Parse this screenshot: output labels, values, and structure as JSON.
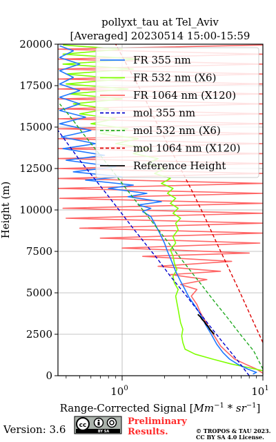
{
  "chart_data": {
    "type": "line",
    "title": "pollyxt_tau at Tel_Aviv",
    "subtitle": "[Averaged] 20230514 15:00-15:59",
    "xlabel": "Range-Corrected Signal [Mm⁻¹ * sr⁻¹]",
    "xlabel_parts": {
      "main": "Range-Corrected Signal [",
      "math": "Mm",
      "sup1": "−1",
      "mid": " * ",
      "math2": "sr",
      "sup2": "−1",
      "end": "]"
    },
    "ylabel": "Height (m)",
    "xscale": "log",
    "xlim": [
      0.35,
      10
    ],
    "ylim": [
      0,
      20000
    ],
    "grid": true,
    "legend_position": "upper-right",
    "x_major_ticks": [
      {
        "value": 1,
        "base": "10",
        "exp": "0"
      },
      {
        "value": 10,
        "base": "10",
        "exp": "1"
      }
    ],
    "y_ticks": [
      "0",
      "2500",
      "5000",
      "7500",
      "10000",
      "12500",
      "15000",
      "17500",
      "20000"
    ],
    "y_tick_values": [
      0,
      2500,
      5000,
      7500,
      10000,
      12500,
      15000,
      17500,
      20000
    ],
    "series": [
      {
        "name": "FR 355 nm",
        "color": "#1f77ff",
        "style": "solid",
        "points": [
          [
            8.5,
            100
          ],
          [
            9.0,
            200
          ],
          [
            7.8,
            400
          ],
          [
            6.6,
            700
          ],
          [
            5.8,
            1000
          ],
          [
            5.2,
            1400
          ],
          [
            4.7,
            1900
          ],
          [
            4.3,
            2500
          ],
          [
            3.9,
            3100
          ],
          [
            3.6,
            3700
          ],
          [
            3.3,
            4200
          ],
          [
            3.0,
            4700
          ],
          [
            2.8,
            5200
          ],
          [
            2.6,
            5700
          ],
          [
            2.4,
            6300
          ],
          [
            2.25,
            6900
          ],
          [
            2.1,
            7500
          ],
          [
            2.0,
            8000
          ],
          [
            1.85,
            8600
          ],
          [
            1.7,
            9200
          ],
          [
            1.6,
            9600
          ],
          [
            1.4,
            9900
          ],
          [
            1.6,
            10100
          ],
          [
            1.3,
            10300
          ],
          [
            1.9,
            10500
          ],
          [
            1.1,
            10800
          ],
          [
            1.5,
            11000
          ],
          [
            0.8,
            11300
          ],
          [
            1.2,
            11500
          ],
          [
            0.55,
            11800
          ],
          [
            1.0,
            12000
          ],
          [
            0.45,
            12300
          ],
          [
            0.9,
            12600
          ],
          [
            0.4,
            13000
          ],
          [
            0.75,
            13300
          ],
          [
            0.38,
            13700
          ],
          [
            0.65,
            14000
          ],
          [
            0.37,
            14400
          ],
          [
            0.6,
            14800
          ],
          [
            0.36,
            15200
          ],
          [
            0.55,
            15600
          ],
          [
            0.36,
            16000
          ],
          [
            0.5,
            16400
          ],
          [
            0.36,
            16800
          ],
          [
            0.5,
            17200
          ],
          [
            0.36,
            17600
          ],
          [
            0.45,
            18000
          ],
          [
            0.36,
            18400
          ],
          [
            0.5,
            18800
          ],
          [
            0.36,
            19200
          ],
          [
            0.45,
            19600
          ],
          [
            0.36,
            19900
          ]
        ]
      },
      {
        "name": "FR 532 nm (X6)",
        "color": "#7fff00",
        "style": "solid",
        "points": [
          [
            10,
            300
          ],
          [
            7.8,
            500
          ],
          [
            6.0,
            700
          ],
          [
            4.4,
            1000
          ],
          [
            3.3,
            1300
          ],
          [
            2.8,
            1600
          ],
          [
            2.7,
            2000
          ],
          [
            2.65,
            2400
          ],
          [
            2.7,
            2800
          ],
          [
            2.6,
            3200
          ],
          [
            2.55,
            3600
          ],
          [
            2.5,
            4000
          ],
          [
            2.45,
            4400
          ],
          [
            2.4,
            4800
          ],
          [
            2.5,
            5200
          ],
          [
            2.35,
            5600
          ],
          [
            2.3,
            6000
          ],
          [
            2.45,
            6400
          ],
          [
            2.35,
            6800
          ],
          [
            2.3,
            7200
          ],
          [
            2.2,
            7600
          ],
          [
            2.4,
            8000
          ],
          [
            2.3,
            8400
          ],
          [
            2.5,
            8800
          ],
          [
            2.4,
            9200
          ],
          [
            2.6,
            9500
          ],
          [
            2.3,
            9800
          ],
          [
            2.5,
            10100
          ],
          [
            2.2,
            10400
          ],
          [
            2.4,
            10700
          ],
          [
            2.1,
            11000
          ],
          [
            2.3,
            11300
          ],
          [
            1.9,
            11600
          ],
          [
            2.2,
            11900
          ],
          [
            1.7,
            12200
          ],
          [
            2.0,
            12500
          ],
          [
            1.5,
            12800
          ],
          [
            1.8,
            13100
          ],
          [
            1.2,
            13400
          ],
          [
            1.6,
            13700
          ],
          [
            0.9,
            14000
          ],
          [
            1.3,
            14300
          ],
          [
            0.7,
            14600
          ],
          [
            1.1,
            14900
          ],
          [
            0.6,
            15200
          ],
          [
            0.9,
            15500
          ],
          [
            0.5,
            15800
          ],
          [
            0.8,
            16100
          ],
          [
            0.45,
            16400
          ],
          [
            1.0,
            16700
          ],
          [
            0.42,
            17000
          ],
          [
            1.1,
            17300
          ],
          [
            0.4,
            17600
          ],
          [
            1.0,
            17900
          ],
          [
            0.4,
            18200
          ],
          [
            1.2,
            18500
          ],
          [
            0.38,
            18800
          ],
          [
            1.3,
            19100
          ],
          [
            0.38,
            19400
          ],
          [
            1.0,
            19700
          ],
          [
            0.38,
            19950
          ]
        ]
      },
      {
        "name": "FR 1064 nm (X120)",
        "color": "#ff6666",
        "style": "solid",
        "points": [
          [
            10,
            150
          ],
          [
            9.0,
            400
          ],
          [
            7.5,
            700
          ],
          [
            6.3,
            1000
          ],
          [
            5.6,
            1400
          ],
          [
            5.0,
            1800
          ],
          [
            4.6,
            2300
          ],
          [
            4.2,
            2800
          ],
          [
            3.9,
            3300
          ],
          [
            3.6,
            3800
          ],
          [
            3.4,
            4300
          ],
          [
            3.1,
            4800
          ],
          [
            3.4,
            5200
          ],
          [
            2.6,
            5500
          ],
          [
            4.0,
            5800
          ],
          [
            2.2,
            6100
          ],
          [
            5.0,
            6300
          ],
          [
            1.8,
            6600
          ],
          [
            6.0,
            6900
          ],
          [
            1.4,
            7200
          ],
          [
            8.0,
            7400
          ],
          [
            1.0,
            7700
          ],
          [
            9.5,
            8000
          ],
          [
            0.7,
            8300
          ],
          [
            10,
            8600
          ],
          [
            0.5,
            8900
          ],
          [
            10,
            9200
          ],
          [
            0.4,
            9500
          ],
          [
            10,
            9800
          ],
          [
            0.38,
            10100
          ],
          [
            10,
            10400
          ],
          [
            0.36,
            10700
          ],
          [
            10,
            11000
          ],
          [
            0.35,
            11300
          ],
          [
            10,
            11600
          ],
          [
            0.35,
            11900
          ],
          [
            10,
            12200
          ],
          [
            0.35,
            12500
          ],
          [
            10,
            12800
          ],
          [
            0.35,
            13100
          ],
          [
            10,
            13400
          ],
          [
            0.35,
            13700
          ],
          [
            10,
            14000
          ],
          [
            0.35,
            14300
          ],
          [
            10,
            14600
          ],
          [
            0.35,
            14900
          ],
          [
            10,
            15200
          ],
          [
            0.35,
            15500
          ],
          [
            10,
            15800
          ],
          [
            0.35,
            16100
          ],
          [
            10,
            16400
          ],
          [
            0.35,
            16700
          ],
          [
            10,
            17000
          ],
          [
            0.35,
            17300
          ],
          [
            10,
            17600
          ],
          [
            0.35,
            17900
          ],
          [
            10,
            18200
          ],
          [
            0.35,
            18500
          ],
          [
            10,
            18800
          ],
          [
            0.35,
            19100
          ],
          [
            10,
            19400
          ],
          [
            0.35,
            19700
          ],
          [
            10,
            19950
          ]
        ]
      },
      {
        "name": "mol 355 nm",
        "color": "#0000cc",
        "style": "dashed",
        "points": [
          [
            8.0,
            0
          ],
          [
            6.5,
            1000
          ],
          [
            5.2,
            2000
          ],
          [
            4.2,
            3000
          ],
          [
            3.4,
            4000
          ],
          [
            2.75,
            5000
          ],
          [
            2.2,
            6000
          ],
          [
            1.8,
            7000
          ],
          [
            1.45,
            8000
          ],
          [
            1.17,
            9000
          ],
          [
            0.95,
            10000
          ],
          [
            0.77,
            11000
          ],
          [
            0.62,
            12000
          ],
          [
            0.5,
            13000
          ],
          [
            0.41,
            14000
          ],
          [
            0.35,
            14800
          ]
        ]
      },
      {
        "name": "mol 532 nm (X6)",
        "color": "#22aa22",
        "style": "dashed",
        "points": [
          [
            10,
            400
          ],
          [
            8.6,
            1500
          ],
          [
            6.9,
            2500
          ],
          [
            5.6,
            3500
          ],
          [
            4.5,
            4500
          ],
          [
            3.65,
            5500
          ],
          [
            2.95,
            6500
          ],
          [
            2.38,
            7500
          ],
          [
            1.93,
            8500
          ],
          [
            1.56,
            9500
          ],
          [
            1.26,
            10500
          ],
          [
            1.02,
            11500
          ],
          [
            0.83,
            12500
          ],
          [
            0.67,
            13500
          ],
          [
            0.54,
            14500
          ],
          [
            0.44,
            15500
          ],
          [
            0.36,
            16400
          ]
        ]
      },
      {
        "name": "mol 1064 nm (X120)",
        "color": "#dd0000",
        "style": "dashed",
        "points": [
          [
            10,
            2000
          ],
          [
            8.3,
            3500
          ],
          [
            6.9,
            5000
          ],
          [
            5.7,
            6500
          ],
          [
            4.7,
            8000
          ],
          [
            3.9,
            9500
          ],
          [
            3.2,
            11000
          ],
          [
            2.6,
            12500
          ],
          [
            2.1,
            14000
          ],
          [
            1.7,
            15500
          ],
          [
            1.4,
            17000
          ],
          [
            1.12,
            18500
          ],
          [
            0.9,
            20000
          ]
        ]
      },
      {
        "name": "Reference Height",
        "color": "#000000",
        "style": "solid",
        "points": [
          [
            3.45,
            3700
          ],
          [
            3.6,
            3550
          ],
          [
            3.7,
            3400
          ],
          [
            3.85,
            3250
          ],
          [
            3.95,
            3100
          ],
          [
            4.1,
            2950
          ],
          [
            4.2,
            2800
          ],
          [
            4.35,
            2650
          ],
          [
            4.5,
            2500
          ]
        ]
      }
    ]
  },
  "footer": {
    "version": "Version: 3.6",
    "license_badge": "cc-by-sa-badge",
    "cc_label": "BY    SA",
    "preliminary_line1": "Preliminary",
    "preliminary_line2": "Results.",
    "copyright_line1": "© TROPOS & TAU 2023.",
    "copyright_line2": "CC BY SA 4.0 License."
  }
}
